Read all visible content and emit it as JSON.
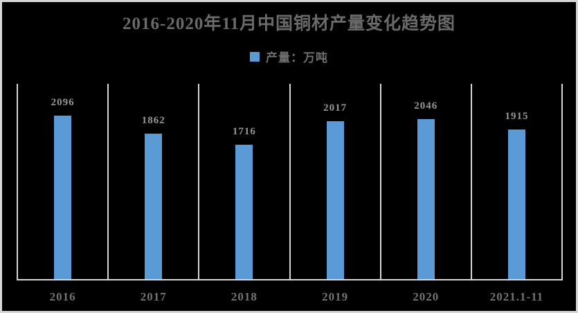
{
  "window": {
    "background_color": "#000000",
    "border_color": "#d6d6d6"
  },
  "chart_data": {
    "type": "bar",
    "title": "2016-2020年11月中国铜材产量变化趋势图",
    "legend": {
      "label": "产量：万吨",
      "swatch_color": "#5B9BD5",
      "position": "top-center"
    },
    "categories": [
      "2016",
      "2017",
      "2018",
      "2019",
      "2020",
      "2021.1-11"
    ],
    "series": [
      {
        "name": "产量：万吨",
        "values": [
          2096,
          1862,
          1716,
          2017,
          2046,
          1915
        ]
      }
    ],
    "values": [
      2096,
      1862,
      1716,
      2017,
      2046,
      1915
    ],
    "bar_color": "#5B9BD5",
    "xlabel": "",
    "ylabel": "",
    "ylim": [
      0,
      2500
    ],
    "grid": "vertical-category-separators",
    "gridline_color": "#d6d6d6",
    "data_labels_shown": true,
    "title_color": "#6a6a6a",
    "data_label_color": "#969696",
    "axis_label_color": "#737373"
  }
}
